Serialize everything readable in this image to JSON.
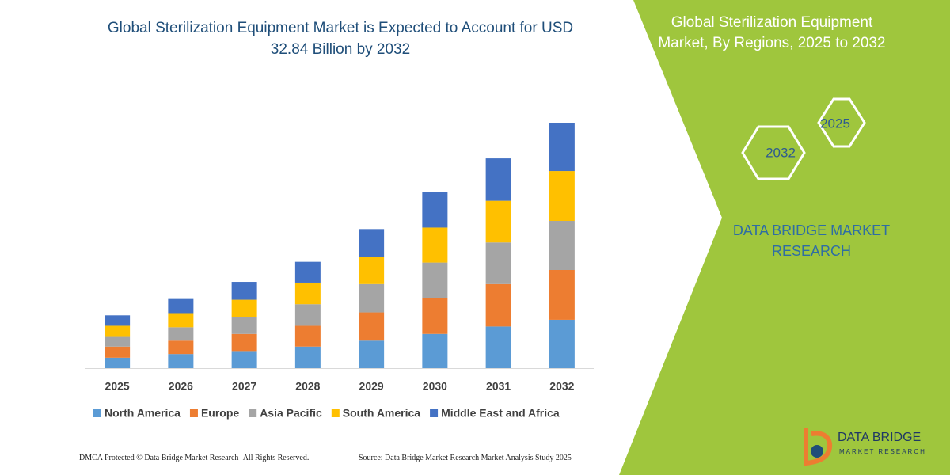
{
  "chart_data": {
    "type": "stacked-bar",
    "title": "Global Sterilization Equipment Market is Expected to Account for USD 32.84 Billion by 2032",
    "categories": [
      "2025",
      "2026",
      "2027",
      "2028",
      "2029",
      "2030",
      "2031",
      "2032"
    ],
    "series": [
      {
        "name": "North America",
        "color": "#5b9bd5",
        "values": [
          1.4,
          1.9,
          2.3,
          2.9,
          3.7,
          4.6,
          5.6,
          6.5
        ]
      },
      {
        "name": "Europe",
        "color": "#ed7d31",
        "values": [
          1.5,
          1.8,
          2.3,
          2.8,
          3.8,
          4.8,
          5.7,
          6.7
        ]
      },
      {
        "name": "Asia Pacific",
        "color": "#a5a5a5",
        "values": [
          1.3,
          1.8,
          2.3,
          2.9,
          3.8,
          4.8,
          5.6,
          6.6
        ]
      },
      {
        "name": "South America",
        "color": "#ffc000",
        "values": [
          1.5,
          1.9,
          2.3,
          2.9,
          3.7,
          4.7,
          5.6,
          6.7
        ]
      },
      {
        "name": "Middle East and Africa",
        "color": "#4472c4",
        "values": [
          1.4,
          1.9,
          2.4,
          2.8,
          3.7,
          4.8,
          5.7,
          6.5
        ]
      }
    ],
    "ylim": [
      0,
      33
    ]
  },
  "panel": {
    "title": "Global Sterilization Equipment Market, By Regions, 2025 to 2032",
    "hexagons": [
      "2025",
      "2032"
    ],
    "brand": "DATA BRIDGE MARKET RESEARCH"
  },
  "logo": {
    "name": "DATA BRIDGE",
    "tagline": "MARKET RESEARCH"
  },
  "footer": {
    "dmca": "DMCA Protected © Data Bridge Market Research-  All Rights Reserved.",
    "source": "Source: Data Bridge Market Research  Market Analysis Study 2025"
  }
}
